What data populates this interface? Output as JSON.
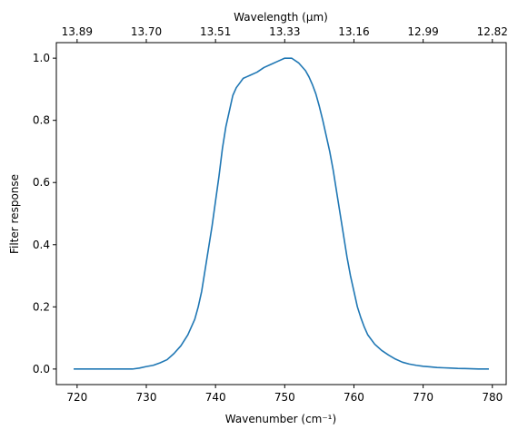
{
  "chart_data": {
    "type": "line",
    "xlabel": "Wavenumber (cm⁻¹)",
    "ylabel": "Filter response",
    "top_xlabel": "Wavelength (μm)",
    "xlim": [
      717,
      782
    ],
    "ylim": [
      -0.05,
      1.05
    ],
    "x_ticks": [
      720,
      730,
      740,
      750,
      760,
      770,
      780
    ],
    "y_ticks": [
      0.0,
      0.2,
      0.4,
      0.6,
      0.8,
      1.0
    ],
    "y_tick_labels": [
      "0.0",
      "0.2",
      "0.4",
      "0.6",
      "0.8",
      "1.0"
    ],
    "top_ticks": [
      "13.89",
      "13.70",
      "13.51",
      "13.33",
      "13.16",
      "12.99",
      "12.82"
    ],
    "grid": false,
    "line_color": "#1f77b4",
    "series": [
      {
        "x": [
          719.5,
          722,
          724,
          726,
          728,
          729,
          730,
          731,
          732,
          733,
          734,
          735,
          736,
          737,
          737.5,
          738,
          738.5,
          739,
          739.5,
          740,
          740.5,
          741,
          741.5,
          742,
          742.5,
          743,
          743.5,
          744,
          744.5,
          745,
          746,
          747,
          748,
          749,
          750,
          751,
          752,
          753,
          753.5,
          754,
          754.5,
          755,
          755.5,
          756,
          756.5,
          757,
          757.5,
          758,
          758.5,
          759,
          759.5,
          760,
          760.5,
          761,
          761.5,
          762,
          763,
          764,
          765,
          766,
          767,
          768,
          769,
          770,
          771,
          772,
          773,
          774,
          775,
          776,
          777,
          778,
          779.5
        ],
        "y": [
          0.0,
          0.0,
          0.0,
          0.0,
          0.0,
          0.003,
          0.008,
          0.012,
          0.02,
          0.03,
          0.05,
          0.075,
          0.11,
          0.16,
          0.2,
          0.25,
          0.32,
          0.39,
          0.46,
          0.54,
          0.62,
          0.71,
          0.78,
          0.83,
          0.88,
          0.905,
          0.92,
          0.935,
          0.94,
          0.945,
          0.955,
          0.97,
          0.98,
          0.99,
          1.0,
          1.0,
          0.985,
          0.96,
          0.94,
          0.915,
          0.885,
          0.845,
          0.8,
          0.75,
          0.7,
          0.64,
          0.57,
          0.5,
          0.43,
          0.36,
          0.3,
          0.25,
          0.2,
          0.165,
          0.135,
          0.11,
          0.08,
          0.06,
          0.045,
          0.032,
          0.022,
          0.016,
          0.012,
          0.009,
          0.007,
          0.005,
          0.004,
          0.003,
          0.002,
          0.0015,
          0.001,
          0.0,
          0.0
        ]
      }
    ]
  }
}
